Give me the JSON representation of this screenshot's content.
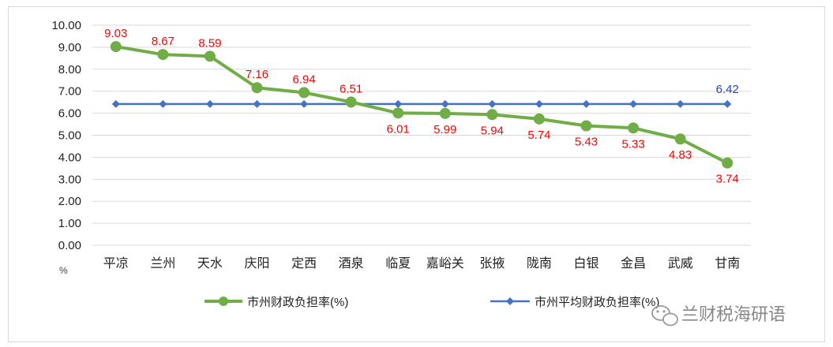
{
  "chart_data": {
    "type": "line",
    "categories": [
      "平凉",
      "兰州",
      "天水",
      "庆阳",
      "定西",
      "酒泉",
      "临夏",
      "嘉峪关",
      "张掖",
      "陇南",
      "白银",
      "金昌",
      "武威",
      "甘南"
    ],
    "series": [
      {
        "name": "市州财政负担率(%)",
        "values": [
          9.03,
          8.67,
          8.59,
          7.16,
          6.94,
          6.51,
          6.01,
          5.99,
          5.94,
          5.74,
          5.43,
          5.33,
          4.83,
          3.74
        ],
        "color": "#70ad47",
        "labels": [
          "9.03",
          "8.67",
          "8.59",
          "7.16",
          "6.94",
          "6.51",
          "6.01",
          "5.99",
          "5.94",
          "5.74",
          "5.43",
          "5.33",
          "4.83",
          "3.74"
        ]
      },
      {
        "name": "市州平均财政负担率",
        "values": [
          6.42,
          6.42,
          6.42,
          6.42,
          6.42,
          6.42,
          6.42,
          6.42,
          6.42,
          6.42,
          6.42,
          6.42,
          6.42,
          6.42
        ],
        "color": "#4472c4",
        "end_label": "6.42"
      }
    ],
    "y_ticks": [
      "0.00",
      "1.00",
      "2.00",
      "3.00",
      "4.00",
      "5.00",
      "6.00",
      "7.00",
      "8.00",
      "9.00",
      "10.00"
    ],
    "ylim": [
      0,
      10
    ],
    "y_unit": "%",
    "grid": true,
    "legend_position": "bottom",
    "legend": [
      "市州财政负担率(%)",
      "市州平均财政负担率(%)"
    ]
  },
  "watermark": {
    "text": "兰财税海研语",
    "icon": "wechat-icon"
  }
}
